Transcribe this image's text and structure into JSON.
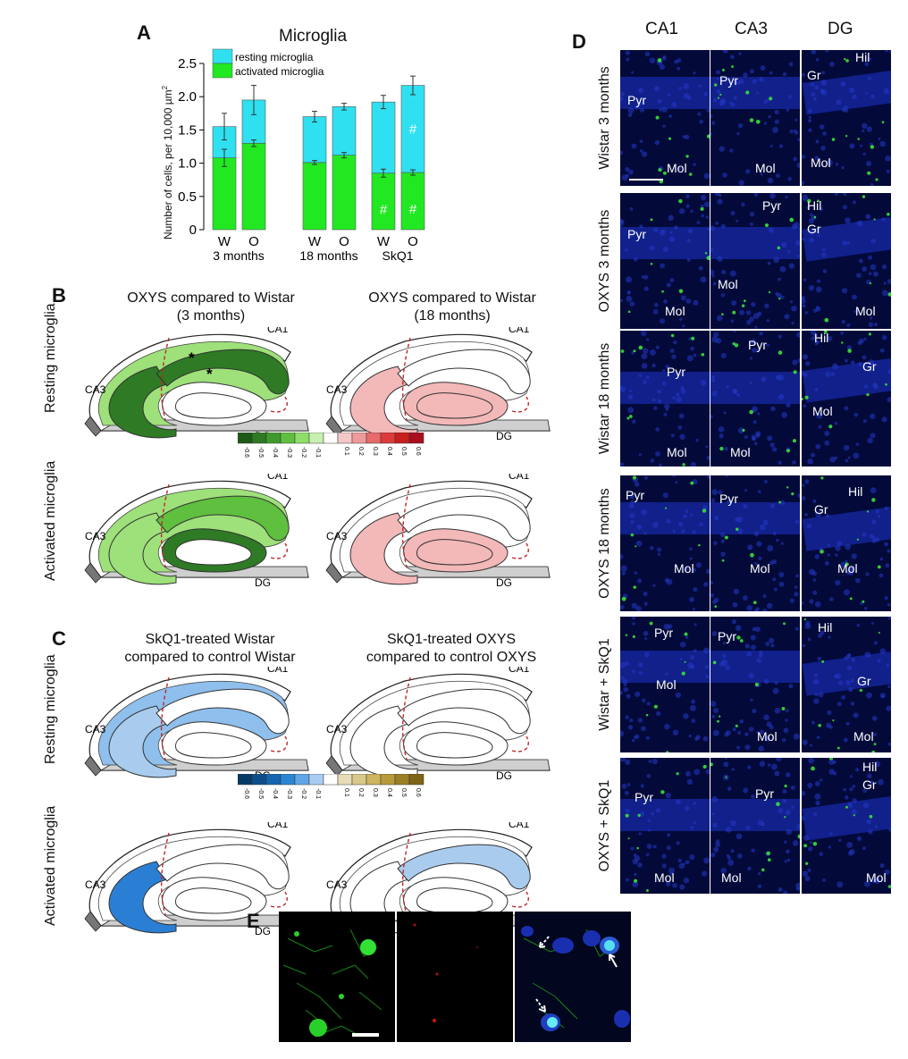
{
  "panel_labels": {
    "a": "A",
    "b": "B",
    "c": "C",
    "d": "D",
    "e": "E"
  },
  "chart_data": {
    "type": "bar",
    "stacked": true,
    "title": "Microglia",
    "ylabel": "Number of cells, per 10,000 µm",
    "ylabel_sup": "2",
    "ylim": [
      0,
      2.5
    ],
    "yticks": [
      "0",
      "0.5",
      "1.0",
      "1.5",
      "2.0",
      "2.5"
    ],
    "ytick_values": [
      0,
      0.5,
      1.0,
      1.5,
      2.0,
      2.5
    ],
    "categories": [
      "W",
      "O",
      "W",
      "O",
      "W",
      "O"
    ],
    "groups": [
      "3 months",
      "18 months",
      "SkQ1"
    ],
    "legend": [
      "resting microglia",
      "activated microglia"
    ],
    "legend_position": "top-left",
    "colors": {
      "resting": "#2fe0f0",
      "activated": "#22e822"
    },
    "series": [
      {
        "name": "activated microglia",
        "values": [
          1.08,
          1.3,
          1.01,
          1.12,
          0.85,
          0.86
        ],
        "errors": [
          0.13,
          0.05,
          0.03,
          0.04,
          0.06,
          0.04
        ]
      },
      {
        "name": "resting microglia",
        "values": [
          0.47,
          0.65,
          0.69,
          0.73,
          1.07,
          1.31
        ],
        "errors": [
          0.2,
          0.22,
          0.08,
          0.05,
          0.1,
          0.14
        ]
      }
    ],
    "annotations": {
      "resting": [
        "",
        "",
        "",
        "",
        "",
        "#"
      ],
      "activated": [
        "",
        "",
        "",
        "",
        "#",
        "#"
      ]
    }
  },
  "panel_b": {
    "row_labels": [
      "Resting microglia",
      "Activated microglia"
    ],
    "col_titles": [
      "OXYS compared to Wistar\n(3 months)",
      "OXYS compared to Wistar\n(18 months)"
    ],
    "region_labels": {
      "ca1": "CA1",
      "ca3": "CA3",
      "dg": "DG"
    },
    "asterisk": "*",
    "scale_ticks": [
      "-0.6",
      "-0.5",
      "-0.4",
      "-0.3",
      "-0.2",
      "-0.1",
      "0.1",
      "0.2",
      "0.3",
      "0.4",
      "0.5",
      "0.6"
    ],
    "scale_colors": [
      "#1d5a16",
      "#2e7a22",
      "#3f9a2e",
      "#5fbf3f",
      "#8fde6a",
      "#c8f0b0",
      "#ffffff",
      "#f6c7c7",
      "#ef9a9a",
      "#e86a6a",
      "#dd3b3b",
      "#c81e1e",
      "#a80e1e"
    ]
  },
  "panel_c": {
    "row_labels": [
      "Resting microglia",
      "Activated microglia"
    ],
    "col_titles": [
      "SkQ1-treated Wistar\ncompared to control Wistar",
      "SkQ1-treated OXYS\ncompared to control OXYS"
    ],
    "scale_ticks": [
      "-0.6",
      "-0.5",
      "-0.4",
      "-0.3",
      "-0.2",
      "-0.1",
      "0.1",
      "0.2",
      "0.3",
      "0.4",
      "0.5",
      "0.6"
    ],
    "scale_colors": [
      "#063a66",
      "#0a4f8a",
      "#1466b0",
      "#2a86d4",
      "#5fa6e6",
      "#a9cdf2",
      "#ffffff",
      "#e7dcb8",
      "#d8c88a",
      "#cdb45e",
      "#b89a3a",
      "#9c7f24",
      "#7e6418"
    ]
  },
  "panel_d": {
    "columns": [
      "CA1",
      "CA3",
      "DG"
    ],
    "rows": [
      "Wistar 3 months",
      "OXYS 3 months",
      "Wistar 18 months",
      "OXYS 18 months",
      "Wistar + SkQ1",
      "OXYS + SkQ1"
    ],
    "tile_labels": [
      [
        [
          "Pyr",
          "Mol"
        ],
        [
          "Pyr",
          "Mol"
        ],
        [
          "Hil",
          "Gr",
          "Mol"
        ]
      ],
      [
        [
          "Pyr",
          "Mol"
        ],
        [
          "Pyr",
          "Mol"
        ],
        [
          "Hil",
          "Gr",
          "Mol"
        ]
      ],
      [
        [
          "Pyr",
          "Mol"
        ],
        [
          "Pyr",
          "Mol"
        ],
        [
          "Hil",
          "Gr",
          "Mol"
        ]
      ],
      [
        [
          "Pyr",
          "Mol"
        ],
        [
          "Pyr",
          "Mol"
        ],
        [
          "Hil",
          "Gr",
          "Mol"
        ]
      ],
      [
        [
          "Pyr",
          "Mol"
        ],
        [
          "Pyr",
          "Mol"
        ],
        [
          "Hil",
          "Gr",
          "Mol"
        ]
      ],
      [
        [
          "Pyr",
          "Mol"
        ],
        [
          "Pyr",
          "Mol"
        ],
        [
          "Hil",
          "Gr",
          "Mol"
        ]
      ]
    ]
  },
  "panel_e": {
    "channels": [
      "green",
      "red",
      "merge"
    ]
  }
}
